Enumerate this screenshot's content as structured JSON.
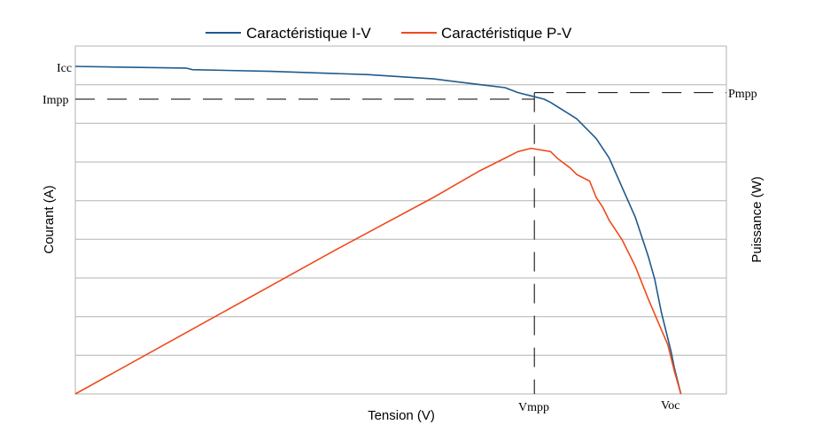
{
  "chart_data": {
    "type": "line",
    "title": "",
    "xlabel": "Tension (V)",
    "ylabel_left": "Courant (A)",
    "ylabel_right": "Puissance (W)",
    "xlim": [
      0,
      1
    ],
    "ylim_left": [
      0,
      1
    ],
    "ylim_right": [
      0,
      1
    ],
    "grid": "horizontal",
    "legend_position": "top-center",
    "series": [
      {
        "name": "Caractéristique I-V",
        "axis": "left",
        "color": "#1f5a8c",
        "x": [
          0.0,
          0.17,
          0.18,
          0.3,
          0.45,
          0.55,
          0.62,
          0.66,
          0.68,
          0.7,
          0.72,
          0.73,
          0.75,
          0.77,
          0.78,
          0.8,
          0.82,
          0.84,
          0.86,
          0.88,
          0.89,
          0.9,
          0.915,
          0.92,
          0.93
        ],
        "y": [
          1.0,
          0.995,
          0.99,
          0.985,
          0.975,
          0.962,
          0.945,
          0.935,
          0.92,
          0.91,
          0.9,
          0.89,
          0.865,
          0.84,
          0.82,
          0.78,
          0.72,
          0.63,
          0.54,
          0.42,
          0.35,
          0.25,
          0.13,
          0.08,
          0.0
        ]
      },
      {
        "name": "Caractéristique P-V",
        "axis": "right",
        "color": "#ee4b1c",
        "x": [
          0.0,
          0.2,
          0.4,
          0.55,
          0.62,
          0.66,
          0.68,
          0.7,
          0.73,
          0.74,
          0.76,
          0.77,
          0.79,
          0.8,
          0.81,
          0.82,
          0.84,
          0.86,
          0.88,
          0.895,
          0.91,
          0.92,
          0.93
        ],
        "y": [
          0.0,
          0.22,
          0.44,
          0.6,
          0.68,
          0.72,
          0.74,
          0.75,
          0.74,
          0.72,
          0.69,
          0.67,
          0.65,
          0.6,
          0.57,
          0.53,
          0.47,
          0.39,
          0.29,
          0.22,
          0.15,
          0.07,
          0.0
        ]
      }
    ],
    "reference_lines": {
      "impp_value": 0.9,
      "pmpp_value": 0.92,
      "vmpp_value": 0.705
    },
    "annotations": {
      "icc": "Icc",
      "impp": "Impp",
      "pmpp": "Pmpp",
      "vmpp": "Vmpp",
      "voc": "Voc"
    },
    "colors": {
      "iv": "#1f5a8c",
      "pv": "#ee4b1c",
      "grid": "#b3b3b3",
      "dash": "#000000"
    }
  }
}
